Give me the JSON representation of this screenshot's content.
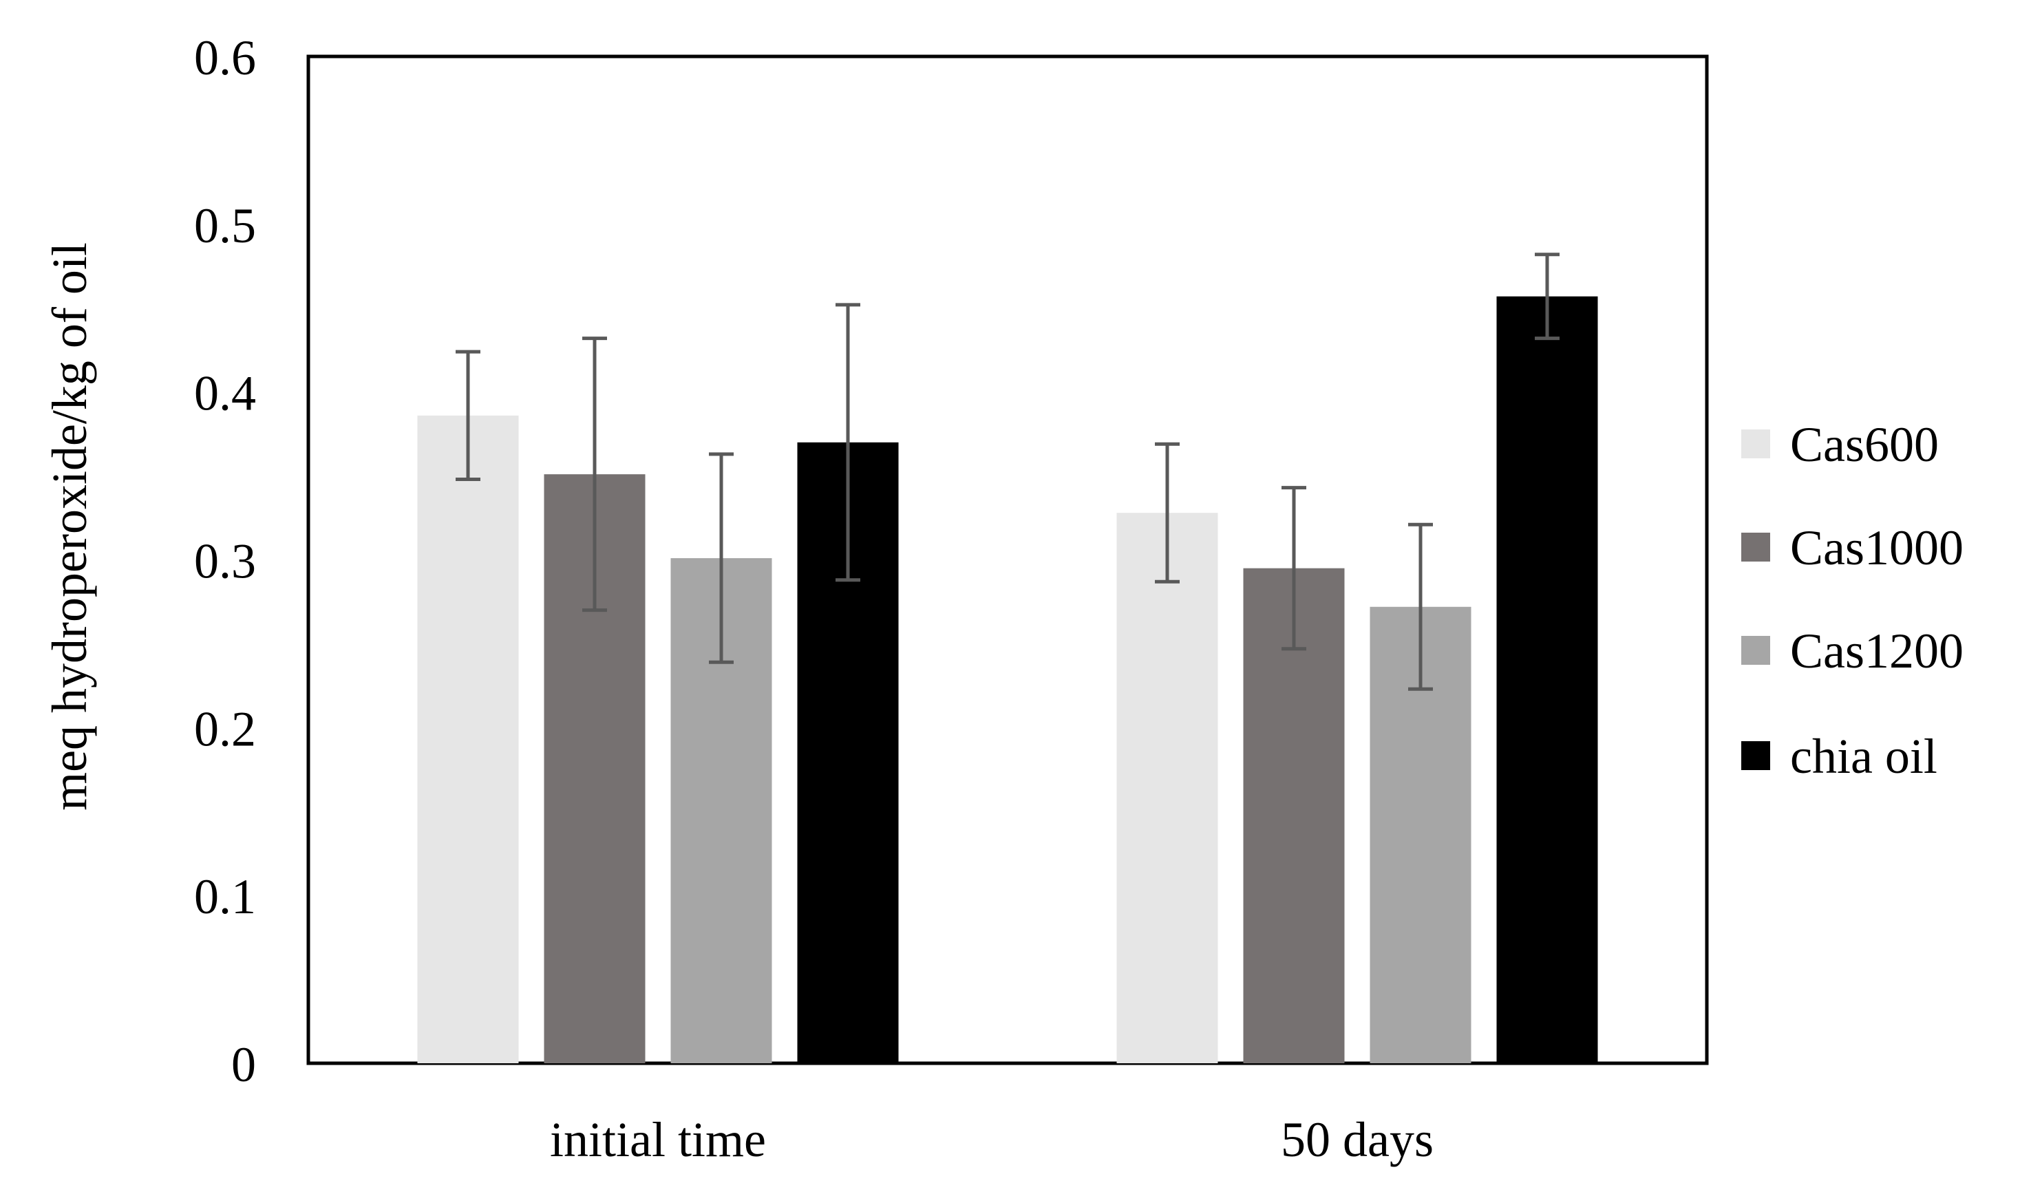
{
  "chart_data": {
    "type": "bar",
    "title": "",
    "xlabel": "",
    "ylabel": "meq hydroperoxide/kg of  oil",
    "ylim": [
      0,
      0.6
    ],
    "yticks": [
      "0",
      "0.1",
      "0.2",
      "0.3",
      "0.4",
      "0.5",
      "0.6"
    ],
    "grid": false,
    "legend_position": "right",
    "categories": [
      "initial time",
      "50 days"
    ],
    "series": [
      {
        "name": "Cas600",
        "color": "#e6e6e6",
        "values": [
          0.386,
          0.328
        ],
        "errors": [
          0.038,
          0.041
        ]
      },
      {
        "name": "Cas1000",
        "color": "#767171",
        "values": [
          0.351,
          0.295
        ],
        "errors": [
          0.081,
          0.048
        ]
      },
      {
        "name": "Cas1200",
        "color": "#a6a6a6",
        "values": [
          0.301,
          0.272
        ],
        "errors": [
          0.062,
          0.049
        ]
      },
      {
        "name": "chia oil",
        "color": "#000000",
        "values": [
          0.37,
          0.457
        ],
        "errors": [
          0.082,
          0.025
        ]
      }
    ],
    "error_bar_color": "#595959"
  }
}
